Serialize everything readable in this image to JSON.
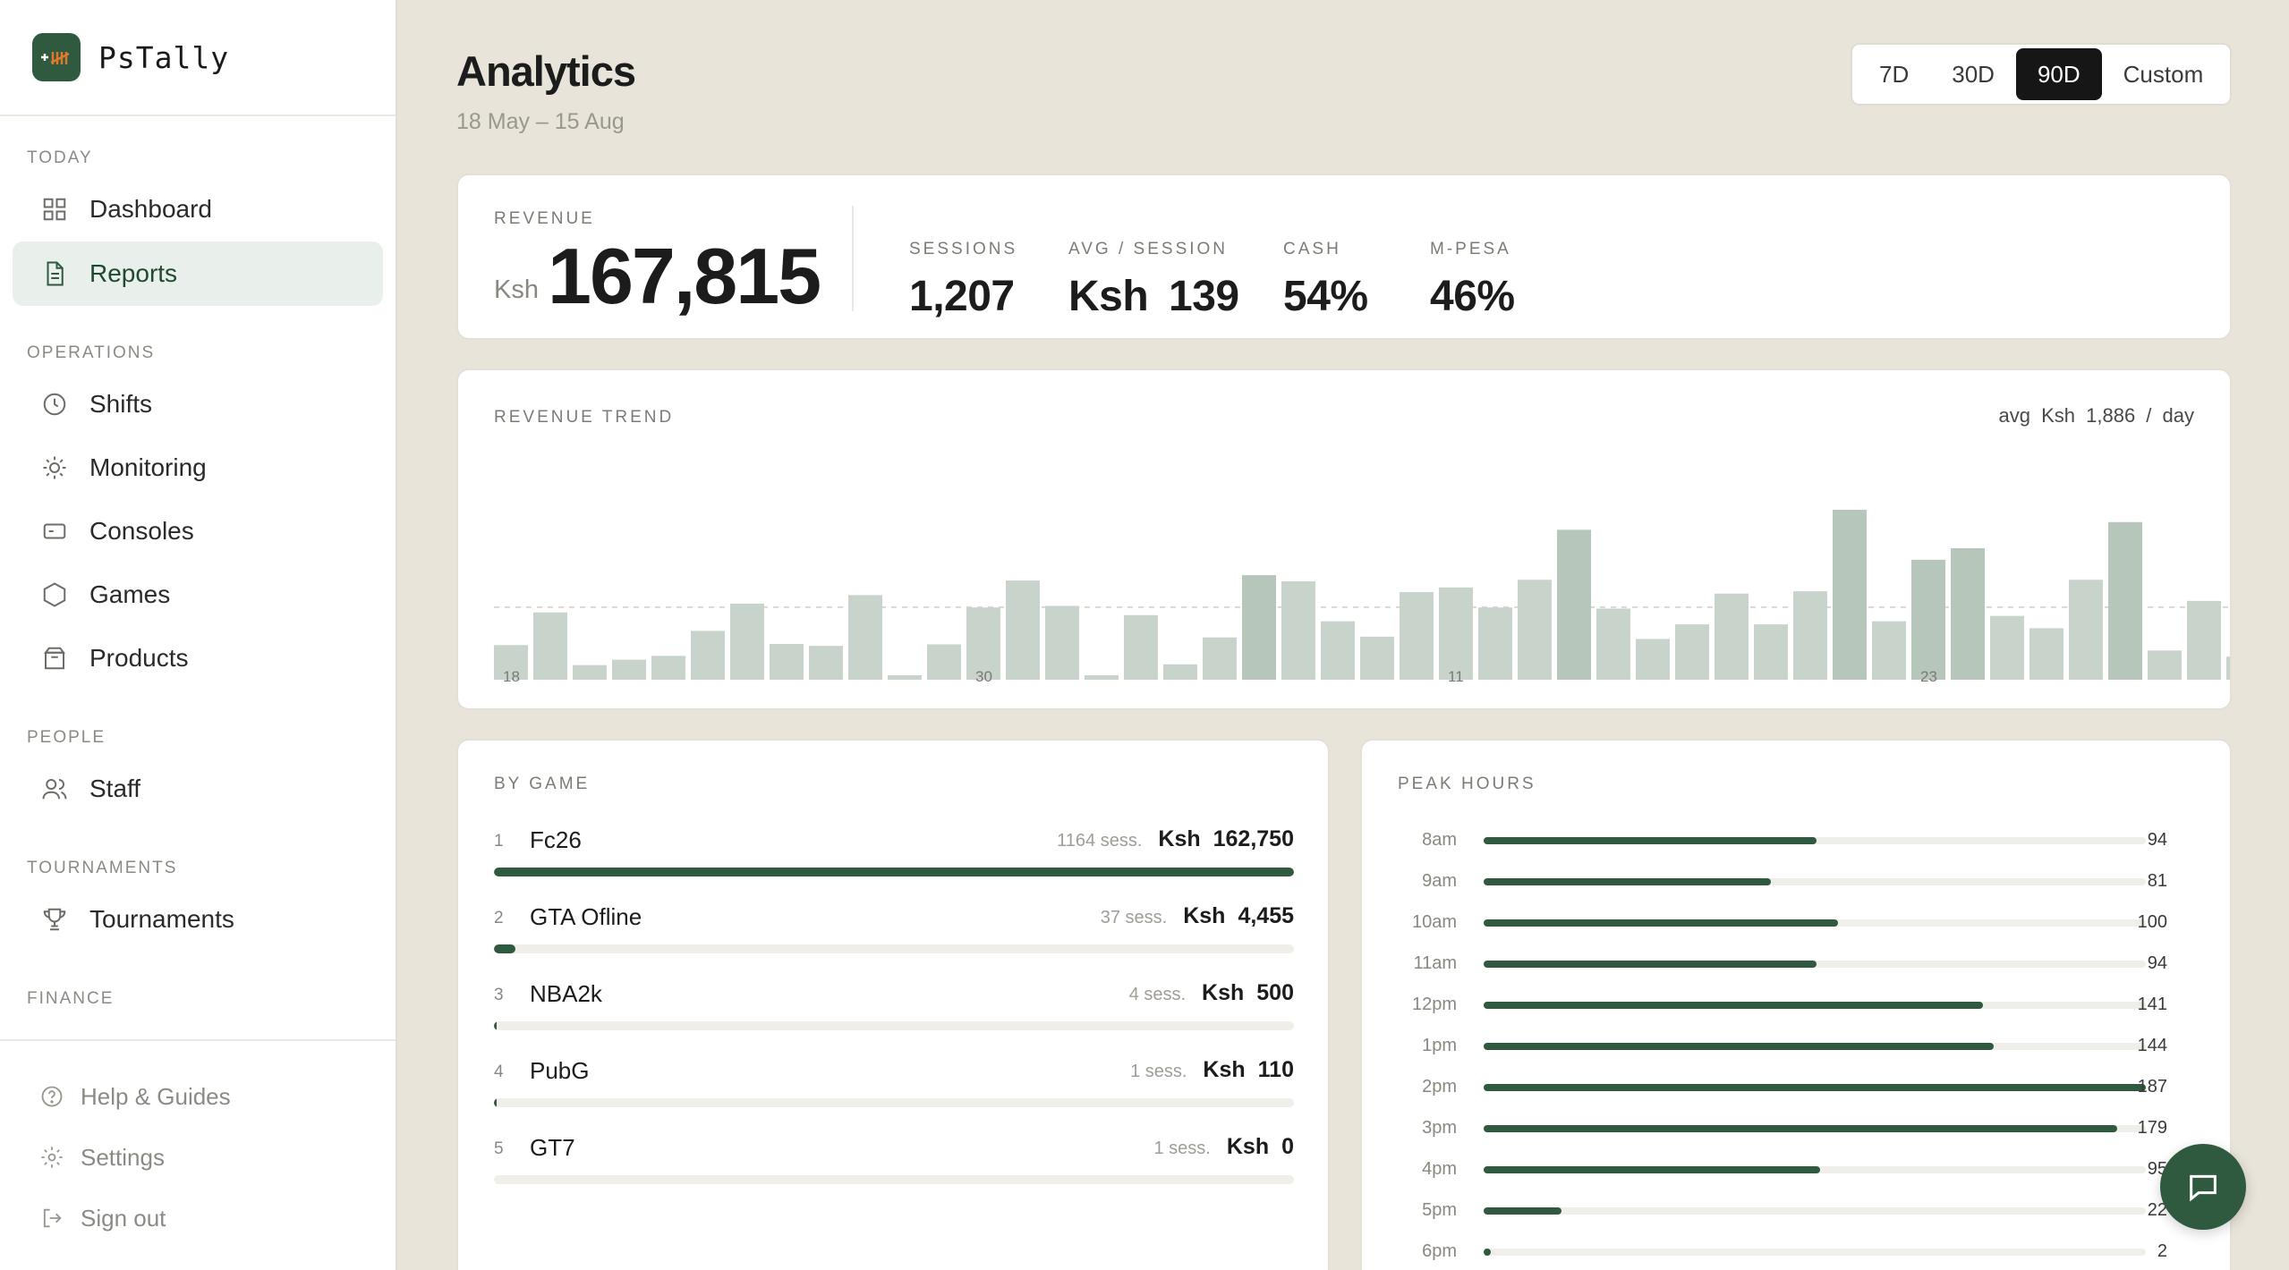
{
  "brand": {
    "name": "PsTally"
  },
  "sidebar": {
    "sections": [
      {
        "title": "Today",
        "items": [
          {
            "label": "Dashboard",
            "icon": "grid-icon"
          },
          {
            "label": "Reports",
            "icon": "document-icon",
            "active": true
          }
        ]
      },
      {
        "title": "Operations",
        "items": [
          {
            "label": "Shifts",
            "icon": "clock-icon"
          },
          {
            "label": "Monitoring",
            "icon": "sun-icon"
          },
          {
            "label": "Consoles",
            "icon": "console-icon"
          },
          {
            "label": "Games",
            "icon": "hexagon-icon"
          },
          {
            "label": "Products",
            "icon": "box-icon"
          }
        ]
      },
      {
        "title": "People",
        "items": [
          {
            "label": "Staff",
            "icon": "users-icon"
          }
        ]
      },
      {
        "title": "Tournaments",
        "items": [
          {
            "label": "Tournaments",
            "icon": "trophy-icon"
          }
        ]
      },
      {
        "title": "Finance",
        "items": []
      }
    ],
    "footer": [
      {
        "label": "Help & Guides",
        "icon": "help-icon"
      },
      {
        "label": "Settings",
        "icon": "gear-icon"
      },
      {
        "label": "Sign out",
        "icon": "signout-icon"
      }
    ]
  },
  "header": {
    "title": "Analytics",
    "date_range": "18 May – 15 Aug",
    "ranges": [
      "7D",
      "30D",
      "90D",
      "Custom"
    ],
    "active_range": "90D"
  },
  "kpis": {
    "revenue": {
      "label": "Revenue",
      "currency": "Ksh",
      "value": "167,815"
    },
    "sessions": {
      "label": "Sessions",
      "value": "1,207"
    },
    "avg_session": {
      "label": "Avg / Session",
      "value": "Ksh 139"
    },
    "cash": {
      "label": "Cash",
      "value": "54%"
    },
    "mpesa": {
      "label": "M-Pesa",
      "value": "46%"
    }
  },
  "trend": {
    "label": "Revenue Trend",
    "avg_text": "avg Ksh 1,886 / day",
    "colors": {
      "bar": "#c8d3cb",
      "bar_tall": "#b7c6bb",
      "line": "#dcd8cf"
    }
  },
  "chart_data": {
    "type": "bar",
    "title": "Revenue Trend",
    "tick_labels": [
      {
        "index": 0,
        "label": "18"
      },
      {
        "index": 12,
        "label": "30"
      },
      {
        "index": 24,
        "label": "11"
      },
      {
        "index": 36,
        "label": "23"
      }
    ],
    "values": [
      900,
      1750,
      380,
      520,
      620,
      1270,
      1980,
      930,
      880,
      2200,
      110,
      920,
      1880,
      2580,
      1920,
      110,
      1680,
      400,
      1100,
      2720,
      2560,
      1520,
      1120,
      2280,
      2400,
      1880,
      2600,
      3900,
      1850,
      1060,
      1440,
      2240,
      1440,
      2300,
      4420,
      1520,
      3120,
      3420,
      1660,
      1340,
      2600,
      4100,
      760,
      2050,
      600
    ],
    "avg_per_day": 1886,
    "ylim": [
      0,
      4420
    ],
    "grid": "dashed average line"
  },
  "games": {
    "label": "By Game",
    "rows": [
      {
        "rank": "1",
        "name": "Fc26",
        "sessions": "1164 sess.",
        "currency": "Ksh",
        "amount": "162,750",
        "share": 1.0
      },
      {
        "rank": "2",
        "name": "GTA Ofline",
        "sessions": "37 sess.",
        "currency": "Ksh",
        "amount": "4,455",
        "share": 0.027
      },
      {
        "rank": "3",
        "name": "NBA2k",
        "sessions": "4 sess.",
        "currency": "Ksh",
        "amount": "500",
        "share": 0.003
      },
      {
        "rank": "4",
        "name": "PubG",
        "sessions": "1 sess.",
        "currency": "Ksh",
        "amount": "110",
        "share": 0.0007
      },
      {
        "rank": "5",
        "name": "GT7",
        "sessions": "1 sess.",
        "currency": "Ksh",
        "amount": "0",
        "share": 0
      }
    ]
  },
  "peak": {
    "label": "Peak Hours",
    "max": 187,
    "rows": [
      {
        "hour": "8am",
        "value": 94
      },
      {
        "hour": "9am",
        "value": 81
      },
      {
        "hour": "10am",
        "value": 100
      },
      {
        "hour": "11am",
        "value": 94
      },
      {
        "hour": "12pm",
        "value": 141
      },
      {
        "hour": "1pm",
        "value": 144
      },
      {
        "hour": "2pm",
        "value": 187
      },
      {
        "hour": "3pm",
        "value": 179
      },
      {
        "hour": "4pm",
        "value": 95
      },
      {
        "hour": "5pm",
        "value": 22
      },
      {
        "hour": "6pm",
        "value": 2
      }
    ]
  },
  "chat": {
    "icon": "chat-icon"
  }
}
